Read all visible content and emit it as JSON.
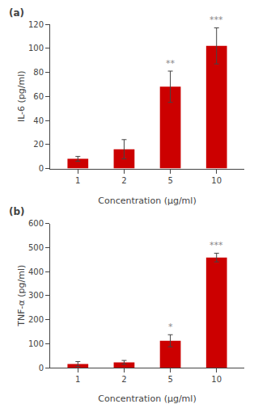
{
  "chart_data": [
    {
      "type": "bar",
      "title": "(a)",
      "categories": [
        "1",
        "2",
        "5",
        "10"
      ],
      "values": [
        8,
        16,
        68,
        102
      ],
      "errors": [
        2,
        8,
        13,
        15
      ],
      "x_label": "Concentration (μg/ml)",
      "y_label": "IL-6 (pg/ml)",
      "ylim": [
        0,
        120
      ],
      "yticks": [
        0,
        20,
        40,
        60,
        80,
        100,
        120
      ],
      "color": "#cc0000",
      "grid": false,
      "annotations": [
        {
          "category": "5",
          "text": "**"
        },
        {
          "category": "10",
          "text": "***"
        }
      ]
    },
    {
      "type": "bar",
      "title": "(b)",
      "categories": [
        "1",
        "2",
        "5",
        "10"
      ],
      "values": [
        15,
        22,
        112,
        458
      ],
      "errors": [
        10,
        8,
        25,
        18
      ],
      "x_label": "Concentration (μg/ml)",
      "y_label": "TNF-α (pg/ml)",
      "ylim": [
        0,
        600
      ],
      "yticks": [
        0,
        100,
        200,
        300,
        400,
        500,
        600
      ],
      "color": "#cc0000",
      "grid": false,
      "annotations": [
        {
          "category": "5",
          "text": "*"
        },
        {
          "category": "10",
          "text": "***"
        }
      ]
    }
  ]
}
